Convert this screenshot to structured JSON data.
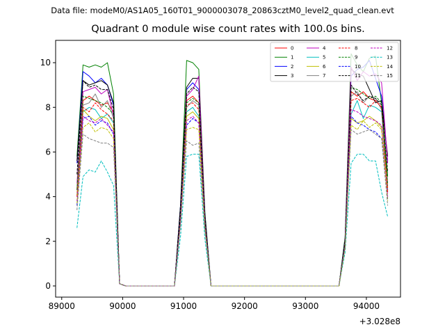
{
  "figure": {
    "suptitle": "Data file: modeM0/AS1A05_160T01_9000003078_20863cztM0_level2_quad_clean.evt",
    "title": "Quadrant 0 module wise count rates with 100.0s bins."
  },
  "chart_data": {
    "type": "line",
    "title": "Quadrant 0 module wise count rates with 100.0s bins.",
    "xlabel": "",
    "ylabel": "",
    "x_offset_label": "+3.028e8",
    "xlim": [
      88900,
      94560
    ],
    "ylim": [
      -0.5,
      11.0
    ],
    "xticks": [
      89000,
      90000,
      91000,
      92000,
      93000,
      94000
    ],
    "xtick_labels": [
      "89000",
      "90000",
      "91000",
      "92000",
      "93000",
      "94000"
    ],
    "yticks": [
      0,
      2,
      4,
      6,
      8,
      10
    ],
    "ytick_labels": [
      "0",
      "2",
      "4",
      "6",
      "8",
      "10"
    ],
    "grid": false,
    "legend_position": "top-right",
    "x": [
      89250,
      89350,
      89450,
      89550,
      89650,
      89750,
      89850,
      89950,
      90050,
      90850,
      90950,
      91050,
      91150,
      91250,
      91350,
      91450,
      93550,
      93650,
      93750,
      93850,
      93950,
      94050,
      94150,
      94250,
      94350
    ],
    "series": [
      {
        "name": "0",
        "color": "#ff0000",
        "dash": "solid",
        "values": [
          4.3,
          8.3,
          8.5,
          8.3,
          8.1,
          8.2,
          7.8,
          0.1,
          0.0,
          0.0,
          3.4,
          8.3,
          8.5,
          8.2,
          3.0,
          0.0,
          0.0,
          2.0,
          8.7,
          8.5,
          8.7,
          8.4,
          8.3,
          8.0,
          4.2
        ]
      },
      {
        "name": "1",
        "color": "#008000",
        "dash": "solid",
        "values": [
          5.8,
          9.9,
          9.8,
          9.9,
          9.8,
          10.0,
          8.6,
          0.1,
          0.0,
          0.0,
          3.6,
          10.1,
          10.0,
          9.7,
          3.3,
          0.0,
          0.0,
          2.2,
          10.4,
          9.9,
          9.6,
          10.2,
          10.3,
          8.2,
          4.9
        ]
      },
      {
        "name": "2",
        "color": "#0000ff",
        "dash": "solid",
        "values": [
          5.5,
          9.6,
          9.4,
          9.1,
          9.3,
          9.0,
          8.1,
          0.1,
          0.0,
          0.0,
          3.6,
          8.8,
          9.1,
          8.8,
          3.2,
          0.0,
          0.0,
          2.1,
          9.4,
          9.7,
          9.8,
          10.1,
          9.3,
          8.5,
          5.6
        ]
      },
      {
        "name": "3",
        "color": "#000000",
        "dash": "solid",
        "values": [
          5.6,
          9.2,
          9.0,
          9.1,
          9.2,
          9.0,
          8.2,
          0.1,
          0.0,
          0.0,
          3.6,
          8.9,
          9.3,
          9.3,
          3.2,
          0.0,
          0.0,
          2.1,
          9.7,
          9.5,
          9.4,
          8.8,
          8.2,
          8.3,
          5.8
        ]
      },
      {
        "name": "4",
        "color": "#bf00bf",
        "dash": "solid",
        "values": [
          4.6,
          8.7,
          8.8,
          8.9,
          8.6,
          8.8,
          7.6,
          0.1,
          0.0,
          0.0,
          3.3,
          8.5,
          8.8,
          9.4,
          3.0,
          0.0,
          0.0,
          2.0,
          9.8,
          9.2,
          9.6,
          9.4,
          9.5,
          9.1,
          5.5
        ]
      },
      {
        "name": "5",
        "color": "#00bfbf",
        "dash": "solid",
        "values": [
          4.1,
          7.8,
          8.0,
          7.9,
          7.5,
          7.7,
          7.3,
          0.1,
          0.0,
          0.0,
          3.1,
          7.8,
          8.0,
          7.6,
          2.8,
          0.0,
          0.0,
          1.9,
          7.7,
          8.3,
          7.5,
          8.1,
          8.0,
          7.8,
          4.3
        ]
      },
      {
        "name": "6",
        "color": "#bfbf00",
        "dash": "solid",
        "values": [
          4.0,
          7.9,
          7.6,
          7.4,
          7.6,
          7.5,
          7.0,
          0.1,
          0.0,
          0.0,
          3.0,
          7.6,
          7.8,
          7.5,
          2.7,
          0.0,
          0.0,
          1.8,
          7.5,
          7.3,
          7.4,
          7.6,
          7.4,
          7.1,
          4.4
        ]
      },
      {
        "name": "7",
        "color": "#808080",
        "dash": "solid",
        "values": [
          4.4,
          8.1,
          8.2,
          8.6,
          8.0,
          8.3,
          7.5,
          0.1,
          0.0,
          0.0,
          3.2,
          8.0,
          8.3,
          8.1,
          2.9,
          0.0,
          0.0,
          1.9,
          8.5,
          8.7,
          8.2,
          8.5,
          8.4,
          7.9,
          4.6
        ]
      },
      {
        "name": "8",
        "color": "#ff0000",
        "dash": "dashed",
        "values": [
          4.0,
          8.0,
          7.8,
          8.2,
          7.9,
          7.7,
          7.4,
          0.1,
          0.0,
          0.0,
          3.1,
          8.1,
          8.2,
          7.9,
          2.8,
          0.0,
          0.0,
          1.9,
          8.3,
          8.4,
          8.2,
          8.0,
          8.3,
          8.0,
          4.3
        ]
      },
      {
        "name": "9",
        "color": "#008000",
        "dash": "dashed",
        "values": [
          4.3,
          8.5,
          8.4,
          8.3,
          8.2,
          8.0,
          7.7,
          0.1,
          0.0,
          0.0,
          3.2,
          8.2,
          8.4,
          8.2,
          2.9,
          0.0,
          0.0,
          2.0,
          8.9,
          8.8,
          8.6,
          8.4,
          8.5,
          8.2,
          4.5
        ]
      },
      {
        "name": "10",
        "color": "#0000ff",
        "dash": "dashed",
        "values": [
          3.6,
          7.5,
          7.6,
          7.2,
          7.4,
          7.3,
          6.8,
          0.1,
          0.0,
          0.0,
          2.9,
          7.2,
          7.5,
          7.3,
          2.6,
          0.0,
          0.0,
          1.8,
          7.6,
          7.3,
          7.2,
          7.0,
          6.9,
          6.6,
          3.9
        ]
      },
      {
        "name": "11",
        "color": "#000000",
        "dash": "dashed",
        "values": [
          5.0,
          9.2,
          8.9,
          9.0,
          8.8,
          8.8,
          7.9,
          0.1,
          0.0,
          0.0,
          3.4,
          8.6,
          8.9,
          8.7,
          3.0,
          0.0,
          0.0,
          2.0,
          9.0,
          8.6,
          8.3,
          8.5,
          8.4,
          8.1,
          5.1
        ]
      },
      {
        "name": "12",
        "color": "#bf00bf",
        "dash": "dashed",
        "values": [
          3.8,
          7.6,
          7.4,
          7.3,
          7.5,
          7.2,
          6.9,
          0.1,
          0.0,
          0.0,
          2.9,
          7.4,
          7.6,
          7.3,
          2.7,
          0.0,
          0.0,
          1.8,
          7.9,
          7.8,
          7.6,
          7.5,
          7.4,
          7.2,
          4.0
        ]
      },
      {
        "name": "13",
        "color": "#00bfbf",
        "dash": "dashed",
        "values": [
          2.6,
          4.9,
          5.2,
          5.1,
          5.6,
          5.1,
          4.5,
          0.1,
          0.0,
          0.0,
          2.2,
          5.8,
          5.9,
          5.9,
          2.1,
          0.0,
          0.0,
          1.5,
          5.5,
          5.9,
          5.9,
          5.6,
          5.6,
          4.2,
          3.1
        ]
      },
      {
        "name": "14",
        "color": "#bfbf00",
        "dash": "dashed",
        "values": [
          3.7,
          7.1,
          7.3,
          6.9,
          7.1,
          7.0,
          6.6,
          0.1,
          0.0,
          0.0,
          2.8,
          7.0,
          7.1,
          7.0,
          2.6,
          0.0,
          0.0,
          1.7,
          7.2,
          7.0,
          7.4,
          7.1,
          7.3,
          7.0,
          3.8
        ]
      },
      {
        "name": "15",
        "color": "#808080",
        "dash": "dashed",
        "values": [
          3.4,
          6.8,
          6.6,
          6.5,
          6.4,
          6.4,
          6.2,
          0.1,
          0.0,
          0.0,
          2.7,
          6.5,
          6.3,
          6.4,
          2.5,
          0.0,
          0.0,
          1.7,
          7.0,
          6.8,
          6.9,
          7.0,
          6.8,
          6.6,
          3.6
        ]
      }
    ]
  }
}
